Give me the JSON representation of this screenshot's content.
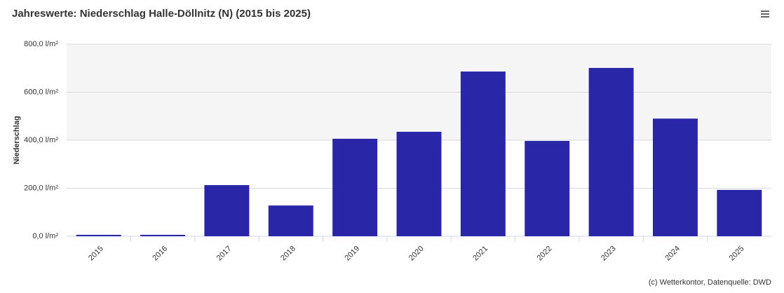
{
  "chart_data": {
    "type": "bar",
    "title": "Jahreswerte: Niederschlag Halle-Döllnitz (N) (2015 bis 2025)",
    "y_label": "Niederschlag",
    "credit": "(c) Wetterkontor, Datenquelle: DWD",
    "categories": [
      "2015",
      "2016",
      "2017",
      "2018",
      "2019",
      "2020",
      "2021",
      "2022",
      "2023",
      "2024",
      "2025"
    ],
    "values": [
      0,
      0,
      213,
      128,
      406,
      435,
      686,
      397,
      701,
      490,
      193
    ],
    "color": "#2a26a8",
    "ylim": [
      0,
      800
    ],
    "yticks": [
      {
        "value": 0,
        "label": "0,0 l/m²"
      },
      {
        "value": 200,
        "label": "200,0 l/m²"
      },
      {
        "value": 400,
        "label": "400,0 l/m²"
      },
      {
        "value": 600,
        "label": "600,0 l/m²"
      },
      {
        "value": 800,
        "label": "800,0 l/m²"
      }
    ],
    "plot_bands": [
      [
        400,
        800
      ]
    ],
    "grid": true
  }
}
